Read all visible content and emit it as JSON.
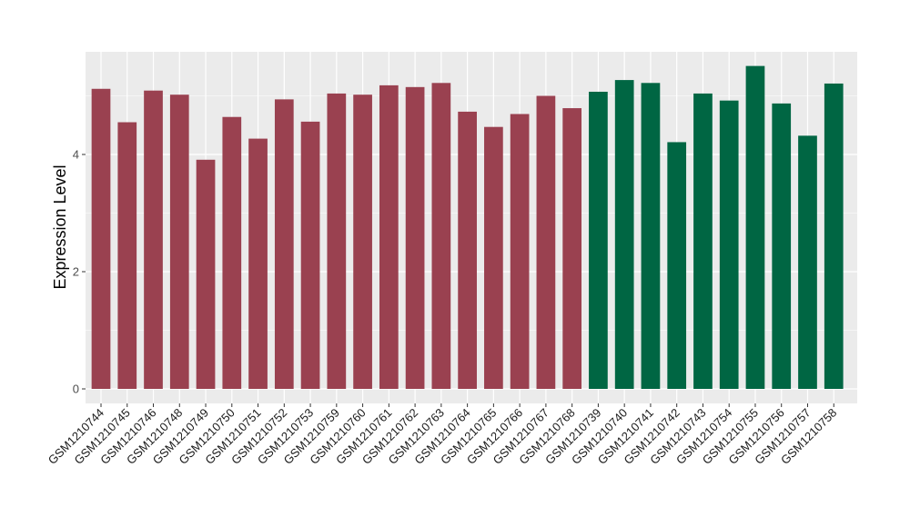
{
  "chart_data": {
    "type": "bar",
    "title": "",
    "xlabel": "",
    "ylabel": "Expression Level",
    "ylim": [
      0,
      5.7
    ],
    "yticks": [
      0,
      2,
      4
    ],
    "grid": true,
    "legend": "none",
    "categories": [
      "GSM1210744",
      "GSM1210745",
      "GSM1210746",
      "GSM1210748",
      "GSM1210749",
      "GSM1210750",
      "GSM1210751",
      "GSM1210752",
      "GSM1210753",
      "GSM1210759",
      "GSM1210760",
      "GSM1210761",
      "GSM1210762",
      "GSM1210763",
      "GSM1210764",
      "GSM1210765",
      "GSM1210766",
      "GSM1210767",
      "GSM1210768",
      "GSM1210739",
      "GSM1210740",
      "GSM1210741",
      "GSM1210742",
      "GSM1210743",
      "GSM1210754",
      "GSM1210755",
      "GSM1210756",
      "GSM1210757",
      "GSM1210758"
    ],
    "values": [
      5.12,
      4.55,
      5.09,
      5.02,
      3.91,
      4.64,
      4.27,
      4.94,
      4.56,
      5.04,
      5.02,
      5.18,
      5.15,
      5.22,
      4.73,
      4.47,
      4.69,
      5.0,
      4.79,
      5.07,
      5.27,
      5.22,
      4.21,
      5.04,
      4.92,
      5.51,
      4.87,
      4.32,
      5.21
    ],
    "group_colors": [
      "#9a4150",
      "#006643"
    ],
    "bar_groups": [
      0,
      0,
      0,
      0,
      0,
      0,
      0,
      0,
      0,
      0,
      0,
      0,
      0,
      0,
      0,
      0,
      0,
      0,
      0,
      1,
      1,
      1,
      1,
      1,
      1,
      1,
      1,
      1,
      1
    ]
  }
}
